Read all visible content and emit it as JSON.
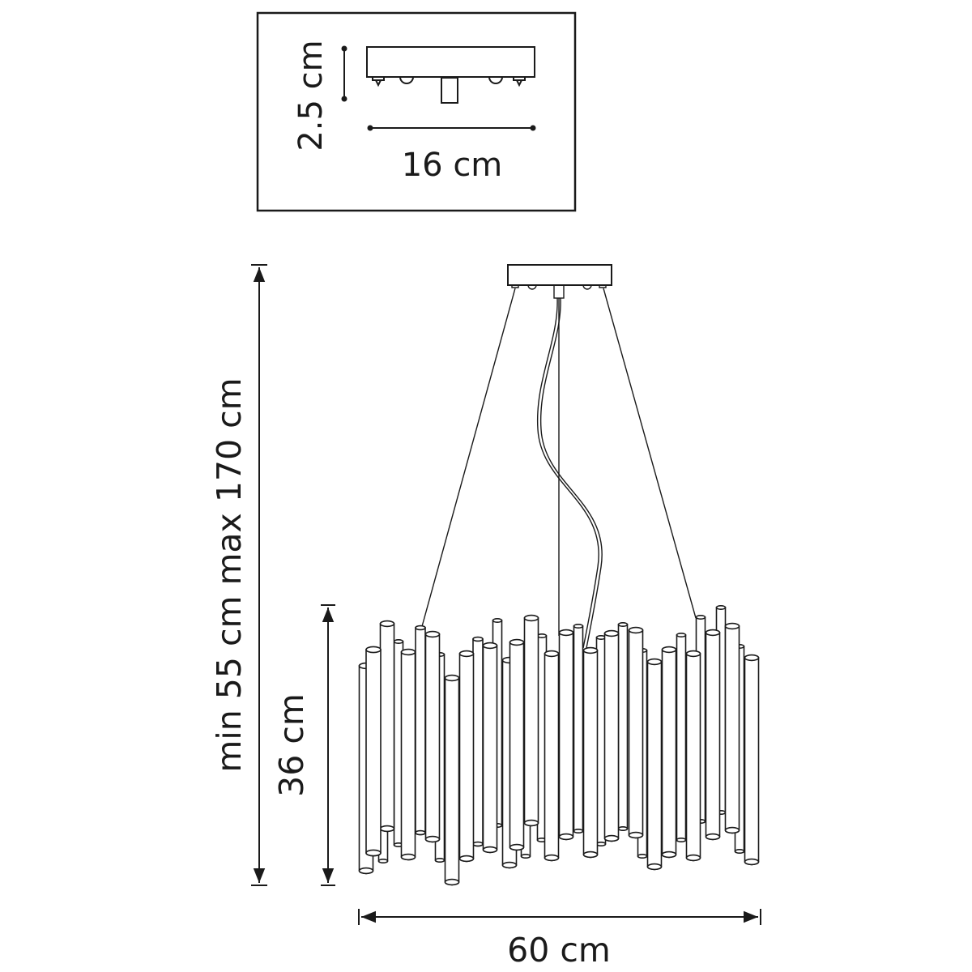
{
  "inset": {
    "canopy_height_label": "2.5 cm",
    "canopy_width_label": "16 cm"
  },
  "dimensions": {
    "total_height_label": "min 55 cm max 170 cm",
    "body_height_label": "36 cm",
    "diameter_label": "60 cm"
  },
  "colors": {
    "line": "#1a1a1a",
    "background": "#ffffff"
  }
}
